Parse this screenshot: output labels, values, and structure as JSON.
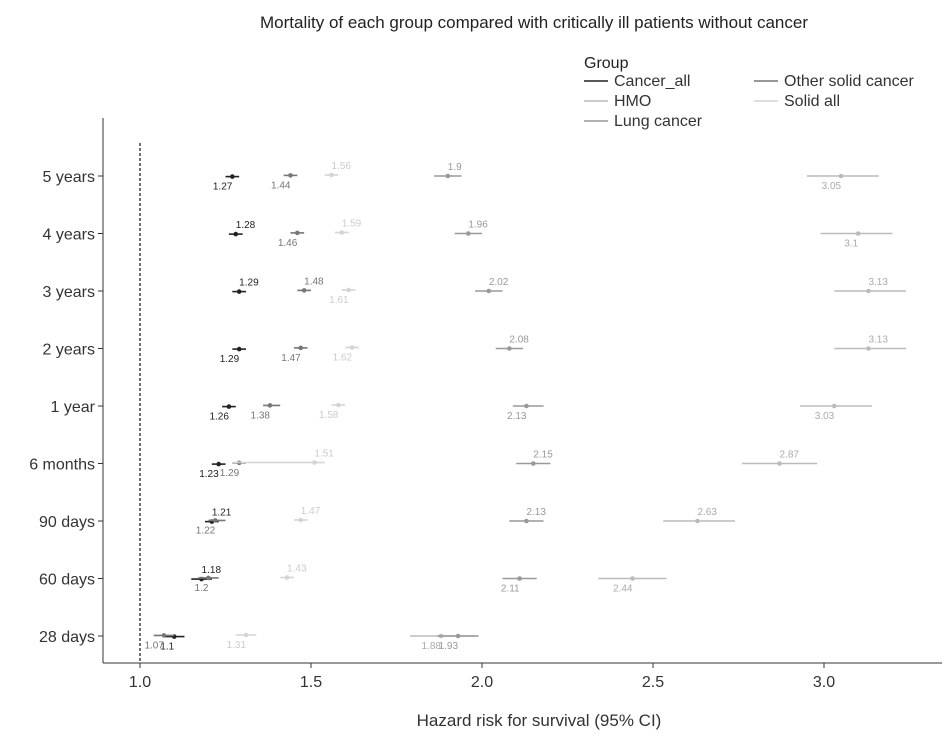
{
  "chart_data": {
    "type": "forest",
    "title": "Mortality of each group compared with critically ill patients without cancer",
    "xlabel": "Hazard risk for survival (95% CI)",
    "ylabel": "",
    "xlim": [
      0.9,
      3.35
    ],
    "xticks": [
      1.0,
      1.5,
      2.0,
      2.5,
      3.0
    ],
    "xtick_labels": [
      "1.0",
      "1.5",
      "2.0",
      "2.5",
      "3.0"
    ],
    "reference_line": 1.0,
    "categories": [
      "5 years",
      "4 years",
      "3 years",
      "2 years",
      "1 year",
      "6 months",
      "90 days",
      "60 days",
      "28 days"
    ],
    "legend": {
      "title": "Group",
      "placement": "top-right"
    },
    "series": [
      {
        "name": "Cancer_all",
        "color": "#222222",
        "points": [
          {
            "category": "5 years",
            "value": 1.27,
            "label": "1.27",
            "lo": 1.25,
            "hi": 1.29,
            "label_pos": "below"
          },
          {
            "category": "4 years",
            "value": 1.28,
            "label": "1.28",
            "lo": 1.26,
            "hi": 1.3,
            "label_pos": "above"
          },
          {
            "category": "3 years",
            "value": 1.29,
            "label": "1.29",
            "lo": 1.27,
            "hi": 1.31,
            "label_pos": "above"
          },
          {
            "category": "2 years",
            "value": 1.29,
            "label": "1.29",
            "lo": 1.27,
            "hi": 1.31,
            "label_pos": "below"
          },
          {
            "category": "1 year",
            "value": 1.26,
            "label": "1.26",
            "lo": 1.24,
            "hi": 1.28,
            "label_pos": "below"
          },
          {
            "category": "6 months",
            "value": 1.23,
            "label": "1.23",
            "lo": 1.21,
            "hi": 1.25,
            "label_pos": "below"
          },
          {
            "category": "90 days",
            "value": 1.21,
            "label": "1.21",
            "lo": 1.19,
            "hi": 1.23,
            "label_pos": "above"
          },
          {
            "category": "60 days",
            "value": 1.18,
            "label": "1.18",
            "lo": 1.15,
            "hi": 1.21,
            "label_pos": "above"
          },
          {
            "category": "28 days",
            "value": 1.1,
            "label": "1.1",
            "lo": 1.07,
            "hi": 1.13,
            "label_pos": "below"
          }
        ]
      },
      {
        "name": "HMO",
        "color": "#bbbbbb",
        "points": [
          {
            "category": "5 years",
            "value": 3.05,
            "label": "3.05",
            "lo": 2.95,
            "hi": 3.16,
            "label_pos": "below"
          },
          {
            "category": "4 years",
            "value": 3.1,
            "label": "3.1",
            "lo": 2.99,
            "hi": 3.2,
            "label_pos": "below"
          },
          {
            "category": "3 years",
            "value": 3.13,
            "label": "3.13",
            "lo": 3.03,
            "hi": 3.24,
            "label_pos": "above"
          },
          {
            "category": "2 years",
            "value": 3.13,
            "label": "3.13",
            "lo": 3.03,
            "hi": 3.24,
            "label_pos": "above"
          },
          {
            "category": "1 year",
            "value": 3.03,
            "label": "3.03",
            "lo": 2.93,
            "hi": 3.14,
            "label_pos": "below"
          },
          {
            "category": "6 months",
            "value": 2.87,
            "label": "2.87",
            "lo": 2.76,
            "hi": 2.98,
            "label_pos": "above"
          },
          {
            "category": "90 days",
            "value": 2.63,
            "label": "2.63",
            "lo": 2.53,
            "hi": 2.74,
            "label_pos": "above"
          },
          {
            "category": "60 days",
            "value": 2.44,
            "label": "2.44",
            "lo": 2.34,
            "hi": 2.54,
            "label_pos": "below"
          },
          {
            "category": "28 days",
            "value": 1.88,
            "label": "1.88",
            "lo": 1.79,
            "hi": 1.98,
            "label_pos": "below"
          }
        ]
      },
      {
        "name": "Lung cancer",
        "color": "#999999",
        "points": [
          {
            "category": "5 years",
            "value": 1.9,
            "label": "1.9",
            "lo": 1.86,
            "hi": 1.94,
            "label_pos": "above"
          },
          {
            "category": "4 years",
            "value": 1.96,
            "label": "1.96",
            "lo": 1.92,
            "hi": 2.0,
            "label_pos": "above"
          },
          {
            "category": "3 years",
            "value": 2.02,
            "label": "2.02",
            "lo": 1.98,
            "hi": 2.06,
            "label_pos": "above"
          },
          {
            "category": "2 years",
            "value": 2.08,
            "label": "2.08",
            "lo": 2.04,
            "hi": 2.12,
            "label_pos": "above"
          },
          {
            "category": "1 year",
            "value": 2.13,
            "label": "2.13",
            "lo": 2.09,
            "hi": 2.18,
            "label_pos": "below"
          },
          {
            "category": "6 months",
            "value": 2.15,
            "label": "2.15",
            "lo": 2.1,
            "hi": 2.2,
            "label_pos": "above"
          },
          {
            "category": "90 days",
            "value": 2.13,
            "label": "2.13",
            "lo": 2.08,
            "hi": 2.18,
            "label_pos": "above"
          },
          {
            "category": "60 days",
            "value": 2.11,
            "label": "2.11",
            "lo": 2.06,
            "hi": 2.16,
            "label_pos": "below"
          },
          {
            "category": "28 days",
            "value": 1.93,
            "label": "1.93",
            "lo": 1.87,
            "hi": 1.99,
            "label_pos": "below"
          }
        ]
      },
      {
        "name": "Other solid cancer",
        "color": "#777777",
        "points": [
          {
            "category": "5 years",
            "value": 1.44,
            "label": "1.44",
            "lo": 1.42,
            "hi": 1.46,
            "label_pos": "below"
          },
          {
            "category": "4 years",
            "value": 1.46,
            "label": "1.46",
            "lo": 1.44,
            "hi": 1.48,
            "label_pos": "below"
          },
          {
            "category": "3 years",
            "value": 1.48,
            "label": "1.48",
            "lo": 1.46,
            "hi": 1.5,
            "label_pos": "above"
          },
          {
            "category": "2 years",
            "value": 1.47,
            "label": "1.47",
            "lo": 1.45,
            "hi": 1.49,
            "label_pos": "below"
          },
          {
            "category": "1 year",
            "value": 1.38,
            "label": "1.38",
            "lo": 1.36,
            "hi": 1.41,
            "label_pos": "below"
          },
          {
            "category": "6 months",
            "value": 1.29,
            "label": "1.29",
            "lo": 1.27,
            "hi": 1.31,
            "label_pos": "below"
          },
          {
            "category": "90 days",
            "value": 1.22,
            "label": "1.22",
            "lo": 1.2,
            "hi": 1.25,
            "label_pos": "below"
          },
          {
            "category": "60 days",
            "value": 1.2,
            "label": "1.2",
            "lo": 1.17,
            "hi": 1.23,
            "label_pos": "below"
          },
          {
            "category": "28 days",
            "value": 1.07,
            "label": "1.07",
            "lo": 1.04,
            "hi": 1.1,
            "label_pos": "below"
          }
        ]
      },
      {
        "name": "Solid all",
        "color": "#d4d4d4",
        "points": [
          {
            "category": "5 years",
            "value": 1.56,
            "label": "1.56",
            "lo": 1.54,
            "hi": 1.58,
            "label_pos": "above"
          },
          {
            "category": "4 years",
            "value": 1.59,
            "label": "1.59",
            "lo": 1.57,
            "hi": 1.61,
            "label_pos": "above"
          },
          {
            "category": "3 years",
            "value": 1.61,
            "label": "1.61",
            "lo": 1.59,
            "hi": 1.63,
            "label_pos": "below"
          },
          {
            "category": "2 years",
            "value": 1.62,
            "label": "1.62",
            "lo": 1.6,
            "hi": 1.64,
            "label_pos": "below"
          },
          {
            "category": "1 year",
            "value": 1.58,
            "label": "1.58",
            "lo": 1.56,
            "hi": 1.6,
            "label_pos": "below"
          },
          {
            "category": "6 months",
            "value": 1.51,
            "label": "1.51",
            "lo": 1.27,
            "hi": 1.54,
            "label_pos": "above"
          },
          {
            "category": "90 days",
            "value": 1.47,
            "label": "1.47",
            "lo": 1.45,
            "hi": 1.49,
            "label_pos": "above"
          },
          {
            "category": "60 days",
            "value": 1.43,
            "label": "1.43",
            "lo": 1.41,
            "hi": 1.45,
            "label_pos": "above"
          },
          {
            "category": "28 days",
            "value": 1.31,
            "label": "1.31",
            "lo": 1.28,
            "hi": 1.34,
            "label_pos": "below"
          }
        ]
      }
    ]
  }
}
